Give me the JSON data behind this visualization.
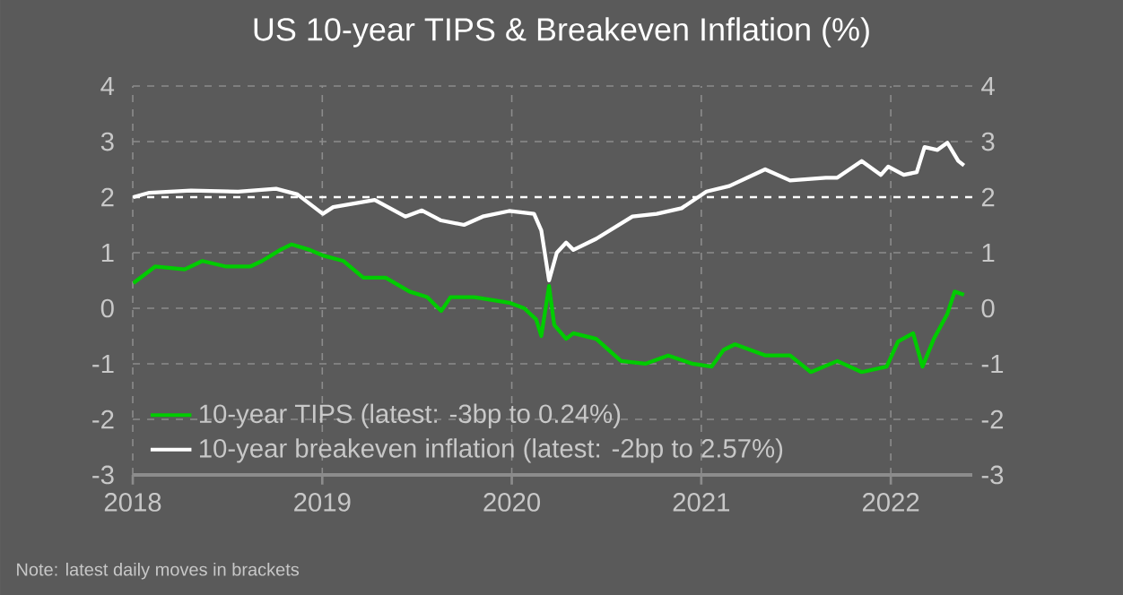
{
  "chart_data": {
    "type": "line",
    "title": "US 10-year TIPS & Breakeven Inflation (%)",
    "series": [
      {
        "name": "10-year TIPS (latest: -3bp to 0.24%)",
        "color": "#00cc00",
        "x": [
          "2018-01-02",
          "2018-02-13",
          "2018-04-11",
          "2018-05-15",
          "2018-06-30",
          "2018-08-15",
          "2018-09-07",
          "2018-10-12",
          "2018-11-03",
          "2018-12-08",
          "2019-01-02",
          "2019-02-11",
          "2019-03-21",
          "2019-05-03",
          "2019-06-18",
          "2019-07-22",
          "2019-08-18",
          "2019-09-05",
          "2019-10-21",
          "2019-12-27",
          "2020-01-25",
          "2020-02-17",
          "2020-02-27",
          "2020-03-13",
          "2020-03-23",
          "2020-04-15",
          "2020-04-29",
          "2020-06-12",
          "2020-07-30",
          "2020-09-15",
          "2020-10-29",
          "2020-12-15",
          "2021-01-21",
          "2021-02-13",
          "2021-03-07",
          "2021-05-05",
          "2021-06-21",
          "2021-07-31",
          "2021-09-20",
          "2021-11-06",
          "2021-12-24",
          "2022-01-15",
          "2022-02-13",
          "2022-03-03",
          "2022-03-25",
          "2022-04-20",
          "2022-05-04",
          "2022-05-22"
        ],
        "values": [
          0.45,
          0.75,
          0.7,
          0.85,
          0.75,
          0.75,
          0.85,
          1.05,
          1.15,
          1.05,
          0.95,
          0.85,
          0.55,
          0.55,
          0.3,
          0.2,
          -0.05,
          0.2,
          0.2,
          0.1,
          0.0,
          -0.2,
          -0.5,
          0.4,
          -0.3,
          -0.55,
          -0.45,
          -0.55,
          -0.95,
          -1.0,
          -0.85,
          -1.0,
          -1.05,
          -0.75,
          -0.65,
          -0.85,
          -0.85,
          -1.15,
          -0.95,
          -1.15,
          -1.05,
          -0.6,
          -0.45,
          -1.05,
          -0.55,
          -0.1,
          0.3,
          0.24
        ]
      },
      {
        "name": "10-year breakeven inflation (latest: -2bp to 2.57%)",
        "color": "#ffffff",
        "x": [
          "2018-01-02",
          "2018-02-02",
          "2018-04-23",
          "2018-07-23",
          "2018-10-04",
          "2018-11-14",
          "2019-01-02",
          "2019-01-22",
          "2019-04-12",
          "2019-06-10",
          "2019-07-12",
          "2019-08-18",
          "2019-10-01",
          "2019-11-06",
          "2019-12-27",
          "2020-02-13",
          "2020-02-27",
          "2020-03-13",
          "2020-03-28",
          "2020-04-15",
          "2020-04-29",
          "2020-06-12",
          "2020-08-21",
          "2020-10-07",
          "2020-11-24",
          "2021-01-11",
          "2021-02-24",
          "2021-05-04",
          "2021-06-21",
          "2021-08-29",
          "2021-09-20",
          "2021-11-06",
          "2021-12-13",
          "2021-12-27",
          "2022-01-26",
          "2022-02-20",
          "2022-03-07",
          "2022-04-01",
          "2022-04-20",
          "2022-05-11",
          "2022-05-22"
        ],
        "values": [
          2.0,
          2.08,
          2.12,
          2.1,
          2.15,
          2.05,
          1.7,
          1.82,
          1.95,
          1.65,
          1.76,
          1.58,
          1.5,
          1.65,
          1.75,
          1.7,
          1.4,
          0.5,
          1.0,
          1.18,
          1.05,
          1.25,
          1.65,
          1.7,
          1.8,
          2.1,
          2.2,
          2.5,
          2.3,
          2.35,
          2.35,
          2.65,
          2.4,
          2.55,
          2.4,
          2.45,
          2.9,
          2.85,
          2.98,
          2.65,
          2.57
        ]
      }
    ],
    "xlim": [
      "2018-01-01",
      "2022-06-07"
    ],
    "xticks": [
      {
        "value": "2018-01-01",
        "label": "2018"
      },
      {
        "value": "2019-01-01",
        "label": "2019"
      },
      {
        "value": "2020-01-01",
        "label": "2020"
      },
      {
        "value": "2021-01-01",
        "label": "2021"
      },
      {
        "value": "2022-01-01",
        "label": "2022"
      }
    ],
    "ylim": [
      -3,
      4
    ],
    "yticks": [
      -3,
      -2,
      -1,
      0,
      1,
      2,
      3,
      4
    ],
    "y2lim": [
      -3,
      4
    ],
    "y2ticks": [
      -3,
      -2,
      -1,
      0,
      1,
      2,
      3,
      4
    ],
    "ref_lines": [
      {
        "axis": "y",
        "value": 2,
        "color": "#ffffff",
        "line_style": "dashed"
      }
    ],
    "grid": true,
    "legend": "bottom left",
    "marker": "none",
    "line_style": "solid",
    "annotations": [
      "Note: latest daily moves in brackets"
    ]
  }
}
